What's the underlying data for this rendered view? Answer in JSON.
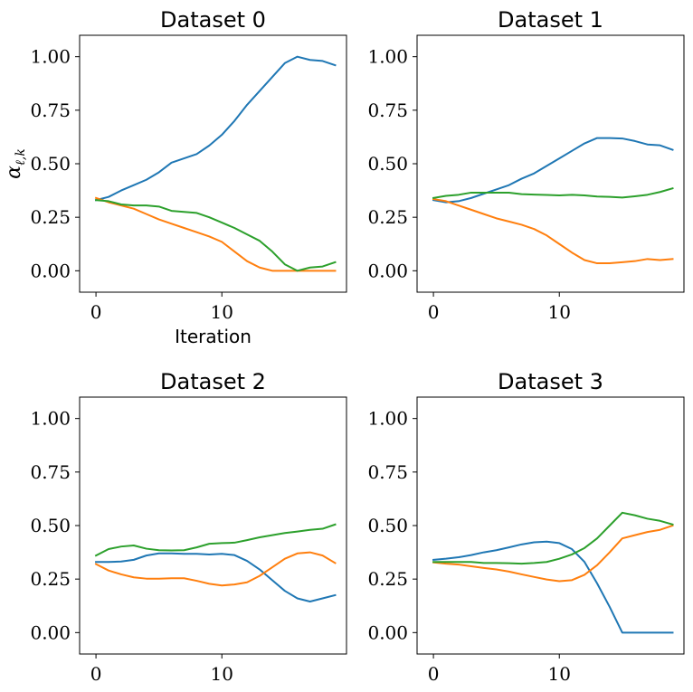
{
  "chart_data": [
    {
      "type": "line",
      "title": "Dataset 0",
      "xlabel": "Iteration",
      "ylabel": "α_{ℓ,k}",
      "xlim": [
        -1.3,
        19.9
      ],
      "ylim": [
        -0.1,
        1.1
      ],
      "xticks": [
        0,
        10
      ],
      "xtick_labels": [
        "0",
        "10"
      ],
      "yticks": [
        0.0,
        0.25,
        0.5,
        0.75,
        1.0
      ],
      "ytick_labels": [
        "0.00",
        "0.25",
        "0.50",
        "0.75",
        "1.00"
      ],
      "grid": false,
      "x": [
        0,
        1,
        2,
        3,
        4,
        5,
        6,
        7,
        8,
        9,
        10,
        11,
        12,
        13,
        14,
        15,
        16,
        17,
        18,
        19
      ],
      "series": [
        {
          "color": "#1f77b4",
          "values": [
            0.33,
            0.345,
            0.375,
            0.4,
            0.425,
            0.46,
            0.505,
            0.525,
            0.545,
            0.585,
            0.635,
            0.7,
            0.775,
            0.84,
            0.905,
            0.97,
            1.0,
            0.985,
            0.98,
            0.96
          ]
        },
        {
          "color": "#ff7f0e",
          "values": [
            0.34,
            0.32,
            0.305,
            0.29,
            0.265,
            0.24,
            0.22,
            0.2,
            0.18,
            0.16,
            0.135,
            0.09,
            0.045,
            0.015,
            0.0,
            0.0,
            0.0,
            0.0,
            0.0,
            0.0
          ]
        },
        {
          "color": "#2ca02c",
          "values": [
            0.33,
            0.325,
            0.31,
            0.305,
            0.305,
            0.3,
            0.28,
            0.275,
            0.27,
            0.25,
            0.225,
            0.2,
            0.17,
            0.14,
            0.09,
            0.03,
            0.0,
            0.015,
            0.02,
            0.04
          ]
        }
      ]
    },
    {
      "type": "line",
      "title": "Dataset 1",
      "xlabel": "",
      "ylabel": "",
      "xlim": [
        -1.3,
        19.9
      ],
      "ylim": [
        -0.1,
        1.1
      ],
      "xticks": [
        0,
        10
      ],
      "xtick_labels": [
        "0",
        "10"
      ],
      "yticks": [
        0.0,
        0.25,
        0.5,
        0.75,
        1.0
      ],
      "ytick_labels": [
        "0.00",
        "0.25",
        "0.50",
        "0.75",
        "1.00"
      ],
      "grid": false,
      "x": [
        0,
        1,
        2,
        3,
        4,
        5,
        6,
        7,
        8,
        9,
        10,
        11,
        12,
        13,
        14,
        15,
        16,
        17,
        18,
        19
      ],
      "series": [
        {
          "color": "#1f77b4",
          "values": [
            0.33,
            0.32,
            0.325,
            0.34,
            0.36,
            0.38,
            0.4,
            0.43,
            0.455,
            0.49,
            0.525,
            0.56,
            0.595,
            0.62,
            0.62,
            0.618,
            0.606,
            0.59,
            0.586,
            0.565
          ]
        },
        {
          "color": "#ff7f0e",
          "values": [
            0.335,
            0.325,
            0.305,
            0.285,
            0.265,
            0.245,
            0.23,
            0.215,
            0.195,
            0.165,
            0.125,
            0.085,
            0.05,
            0.035,
            0.035,
            0.04,
            0.045,
            0.055,
            0.05,
            0.055
          ]
        },
        {
          "color": "#2ca02c",
          "values": [
            0.34,
            0.35,
            0.355,
            0.365,
            0.365,
            0.365,
            0.365,
            0.358,
            0.356,
            0.354,
            0.352,
            0.355,
            0.352,
            0.347,
            0.345,
            0.342,
            0.348,
            0.355,
            0.368,
            0.385
          ]
        }
      ]
    },
    {
      "type": "line",
      "title": "Dataset 2",
      "xlabel": "",
      "ylabel": "",
      "xlim": [
        -1.3,
        19.9
      ],
      "ylim": [
        -0.1,
        1.1
      ],
      "xticks": [
        0,
        10
      ],
      "xtick_labels": [
        "0",
        "10"
      ],
      "yticks": [
        0.0,
        0.25,
        0.5,
        0.75,
        1.0
      ],
      "ytick_labels": [
        "0.00",
        "0.25",
        "0.50",
        "0.75",
        "1.00"
      ],
      "grid": false,
      "x": [
        0,
        1,
        2,
        3,
        4,
        5,
        6,
        7,
        8,
        9,
        10,
        11,
        12,
        13,
        14,
        15,
        16,
        17,
        18,
        19
      ],
      "series": [
        {
          "color": "#1f77b4",
          "values": [
            0.33,
            0.33,
            0.332,
            0.34,
            0.36,
            0.37,
            0.37,
            0.368,
            0.368,
            0.365,
            0.368,
            0.362,
            0.335,
            0.295,
            0.245,
            0.195,
            0.16,
            0.145,
            0.16,
            0.175
          ]
        },
        {
          "color": "#ff7f0e",
          "values": [
            0.32,
            0.29,
            0.272,
            0.258,
            0.252,
            0.252,
            0.254,
            0.254,
            0.242,
            0.228,
            0.22,
            0.225,
            0.235,
            0.265,
            0.305,
            0.345,
            0.37,
            0.375,
            0.36,
            0.325
          ]
        },
        {
          "color": "#2ca02c",
          "values": [
            0.36,
            0.39,
            0.402,
            0.407,
            0.392,
            0.385,
            0.384,
            0.385,
            0.398,
            0.415,
            0.418,
            0.42,
            0.432,
            0.445,
            0.455,
            0.465,
            0.472,
            0.48,
            0.485,
            0.505
          ]
        }
      ]
    },
    {
      "type": "line",
      "title": "Dataset 3",
      "xlabel": "",
      "ylabel": "",
      "xlim": [
        -1.3,
        19.9
      ],
      "ylim": [
        -0.1,
        1.1
      ],
      "xticks": [
        0,
        10
      ],
      "xtick_labels": [
        "0",
        "10"
      ],
      "yticks": [
        0.0,
        0.25,
        0.5,
        0.75,
        1.0
      ],
      "ytick_labels": [
        "0.00",
        "0.25",
        "0.50",
        "0.75",
        "1.00"
      ],
      "grid": false,
      "x": [
        0,
        1,
        2,
        3,
        4,
        5,
        6,
        7,
        8,
        9,
        10,
        11,
        12,
        13,
        14,
        15,
        16,
        17,
        18,
        19
      ],
      "series": [
        {
          "color": "#1f77b4",
          "values": [
            0.34,
            0.345,
            0.352,
            0.362,
            0.375,
            0.385,
            0.398,
            0.412,
            0.422,
            0.425,
            0.418,
            0.39,
            0.33,
            0.23,
            0.12,
            0.0,
            0.0,
            0.0,
            0.0,
            0.0
          ]
        },
        {
          "color": "#ff7f0e",
          "values": [
            0.328,
            0.322,
            0.318,
            0.31,
            0.302,
            0.295,
            0.285,
            0.272,
            0.26,
            0.248,
            0.24,
            0.245,
            0.27,
            0.315,
            0.375,
            0.44,
            0.455,
            0.47,
            0.48,
            0.5
          ]
        },
        {
          "color": "#2ca02c",
          "values": [
            0.33,
            0.33,
            0.33,
            0.33,
            0.325,
            0.325,
            0.324,
            0.322,
            0.325,
            0.33,
            0.345,
            0.365,
            0.395,
            0.44,
            0.5,
            0.56,
            0.548,
            0.532,
            0.522,
            0.505
          ]
        }
      ]
    }
  ]
}
